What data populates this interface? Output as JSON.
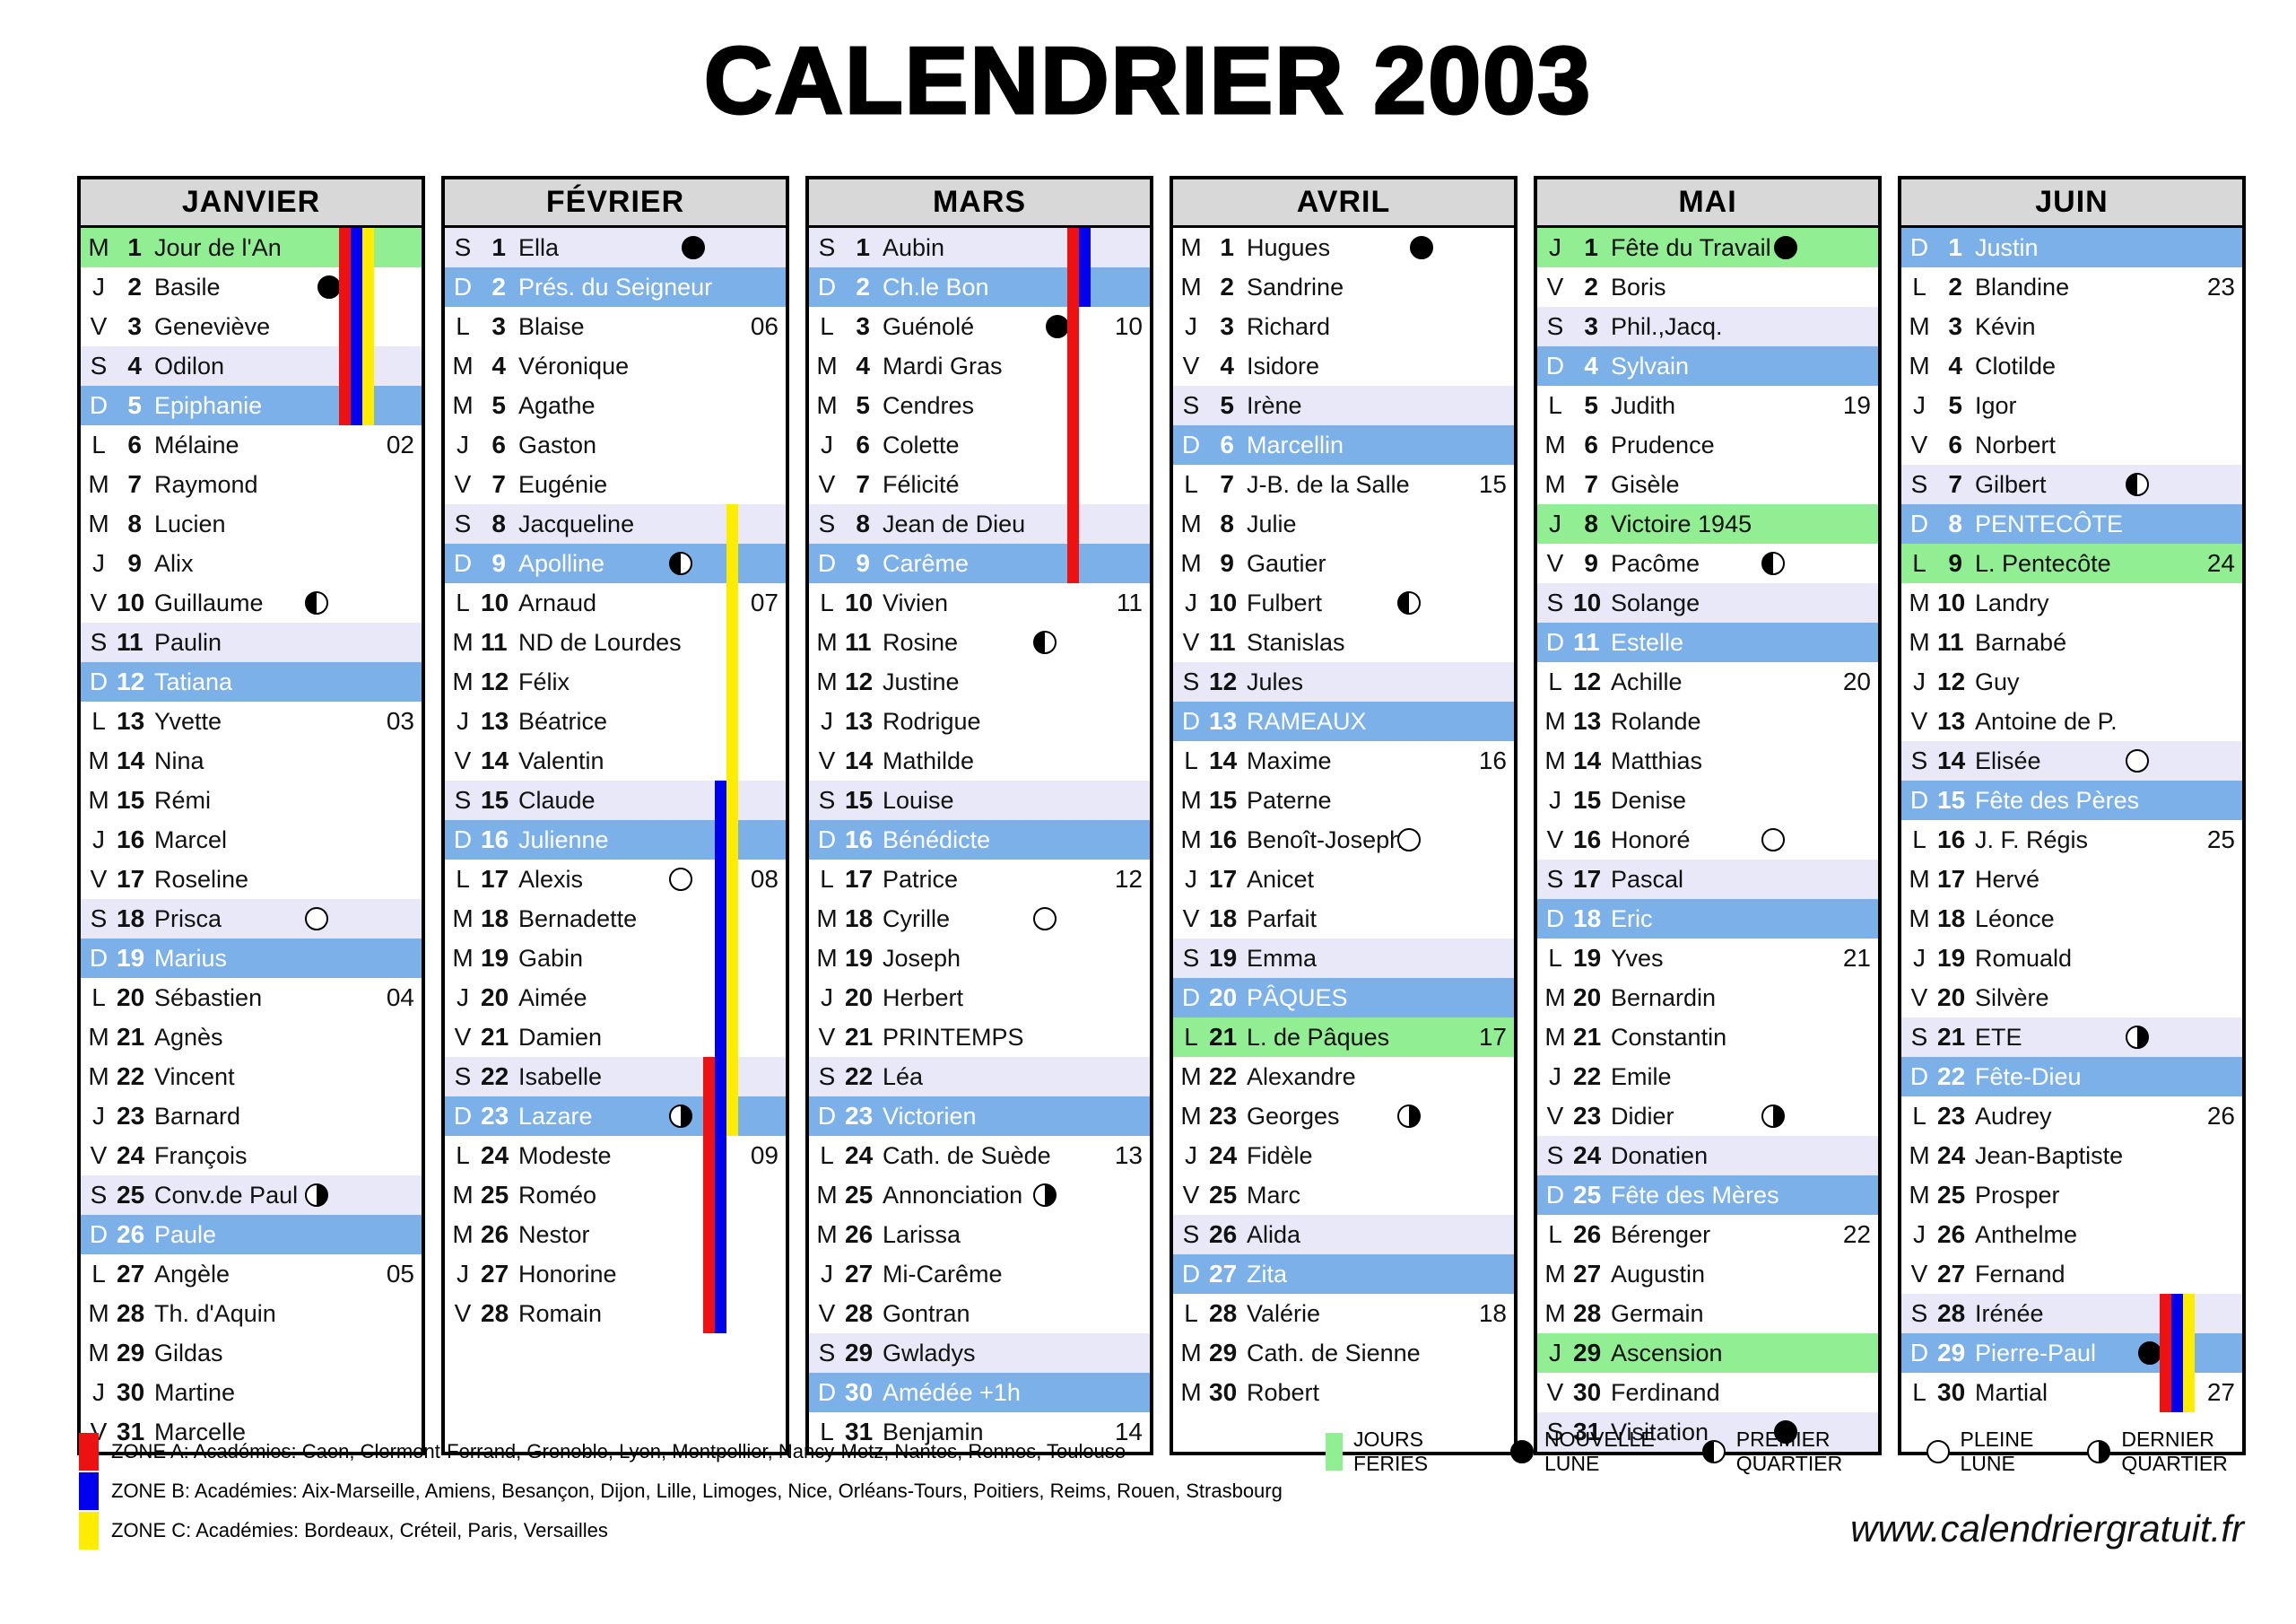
{
  "title": "CALENDRIER 2003",
  "website": "www.calendriergratuit.fr",
  "colors": {
    "sunday_row": "#7cb0e8",
    "saturday_row": "#e8e8f8",
    "holiday_row": "#92ee92",
    "header_bg": "#d8d8d8",
    "zone_a": "#ee1111",
    "zone_b": "#0000ee",
    "zone_c": "#ffed00"
  },
  "legend": {
    "zones": [
      {
        "zone": "A",
        "label": "ZONE A: Académies: Caen, Clermont-Ferrand, Grenoble, Lyon, Montpellier, Nancy-Metz, Nantes, Rennes, Toulouse"
      },
      {
        "zone": "B",
        "label": "ZONE B: Académies: Aix-Marseille, Amiens, Besançon, Dijon, Lille, Limoges, Nice, Orléans-Tours, Poitiers, Reims, Rouen, Strasbourg"
      },
      {
        "zone": "C",
        "label": "ZONE C: Académies: Bordeaux, Créteil, Paris, Versailles"
      }
    ],
    "markers": {
      "holiday": "JOURS FERIES",
      "new_moon": "NOUVELLE LUNE",
      "first_quarter": "PREMIER QUARTIER",
      "full_moon": "PLEINE LUNE",
      "last_quarter": "DERNIER QUARTIER"
    }
  },
  "months": [
    {
      "name": "JANVIER",
      "days": [
        {
          "d": "M",
          "n": 1,
          "s": "Jour de l'An",
          "h": 1,
          "z": "ABC"
        },
        {
          "d": "J",
          "n": 2,
          "s": "Basile",
          "m": "nm",
          "z": "ABC"
        },
        {
          "d": "V",
          "n": 3,
          "s": "Geneviève",
          "z": "ABC"
        },
        {
          "d": "S",
          "n": 4,
          "s": "Odilon",
          "z": "ABC"
        },
        {
          "d": "D",
          "n": 5,
          "s": "Epiphanie",
          "z": "ABC"
        },
        {
          "d": "L",
          "n": 6,
          "s": "Mélaine",
          "w": "02"
        },
        {
          "d": "M",
          "n": 7,
          "s": "Raymond"
        },
        {
          "d": "M",
          "n": 8,
          "s": "Lucien"
        },
        {
          "d": "J",
          "n": 9,
          "s": "Alix"
        },
        {
          "d": "V",
          "n": 10,
          "s": "Guillaume",
          "m": "fq"
        },
        {
          "d": "S",
          "n": 11,
          "s": "Paulin"
        },
        {
          "d": "D",
          "n": 12,
          "s": "Tatiana"
        },
        {
          "d": "L",
          "n": 13,
          "s": "Yvette",
          "w": "03"
        },
        {
          "d": "M",
          "n": 14,
          "s": "Nina"
        },
        {
          "d": "M",
          "n": 15,
          "s": "Rémi"
        },
        {
          "d": "J",
          "n": 16,
          "s": "Marcel"
        },
        {
          "d": "V",
          "n": 17,
          "s": "Roseline"
        },
        {
          "d": "S",
          "n": 18,
          "s": "Prisca",
          "m": "fm"
        },
        {
          "d": "D",
          "n": 19,
          "s": "Marius"
        },
        {
          "d": "L",
          "n": 20,
          "s": "Sébastien",
          "w": "04"
        },
        {
          "d": "M",
          "n": 21,
          "s": "Agnès"
        },
        {
          "d": "M",
          "n": 22,
          "s": "Vincent"
        },
        {
          "d": "J",
          "n": 23,
          "s": "Barnard"
        },
        {
          "d": "V",
          "n": 24,
          "s": "François"
        },
        {
          "d": "S",
          "n": 25,
          "s": "Conv.de Paul",
          "m": "lq"
        },
        {
          "d": "D",
          "n": 26,
          "s": "Paule"
        },
        {
          "d": "L",
          "n": 27,
          "s": "Angèle",
          "w": "05"
        },
        {
          "d": "M",
          "n": 28,
          "s": "Th. d'Aquin"
        },
        {
          "d": "M",
          "n": 29,
          "s": "Gildas"
        },
        {
          "d": "J",
          "n": 30,
          "s": "Martine"
        },
        {
          "d": "V",
          "n": 31,
          "s": "Marcelle"
        }
      ]
    },
    {
      "name": "FÉVRIER",
      "days": [
        {
          "d": "S",
          "n": 1,
          "s": "Ella",
          "m": "nm"
        },
        {
          "d": "D",
          "n": 2,
          "s": "Prés. du Seigneur"
        },
        {
          "d": "L",
          "n": 3,
          "s": "Blaise",
          "w": "06"
        },
        {
          "d": "M",
          "n": 4,
          "s": "Véronique"
        },
        {
          "d": "M",
          "n": 5,
          "s": "Agathe"
        },
        {
          "d": "J",
          "n": 6,
          "s": "Gaston"
        },
        {
          "d": "V",
          "n": 7,
          "s": "Eugénie"
        },
        {
          "d": "S",
          "n": 8,
          "s": "Jacqueline",
          "z": "C"
        },
        {
          "d": "D",
          "n": 9,
          "s": "Apolline",
          "m": "fq",
          "z": "C"
        },
        {
          "d": "L",
          "n": 10,
          "s": "Arnaud",
          "w": "07",
          "z": "C"
        },
        {
          "d": "M",
          "n": 11,
          "s": "ND de Lourdes",
          "z": "C"
        },
        {
          "d": "M",
          "n": 12,
          "s": "Félix",
          "z": "C"
        },
        {
          "d": "J",
          "n": 13,
          "s": "Béatrice",
          "z": "C"
        },
        {
          "d": "V",
          "n": 14,
          "s": "Valentin",
          "z": "C"
        },
        {
          "d": "S",
          "n": 15,
          "s": "Claude",
          "z": "BC"
        },
        {
          "d": "D",
          "n": 16,
          "s": "Julienne",
          "z": "BC"
        },
        {
          "d": "L",
          "n": 17,
          "s": "Alexis",
          "m": "fm",
          "w": "08",
          "z": "BC"
        },
        {
          "d": "M",
          "n": 18,
          "s": "Bernadette",
          "z": "BC"
        },
        {
          "d": "M",
          "n": 19,
          "s": "Gabin",
          "z": "BC"
        },
        {
          "d": "J",
          "n": 20,
          "s": "Aimée",
          "z": "BC"
        },
        {
          "d": "V",
          "n": 21,
          "s": "Damien",
          "z": "BC"
        },
        {
          "d": "S",
          "n": 22,
          "s": "Isabelle",
          "z": "ABC"
        },
        {
          "d": "D",
          "n": 23,
          "s": "Lazare",
          "m": "lq",
          "z": "ABC"
        },
        {
          "d": "L",
          "n": 24,
          "s": "Modeste",
          "w": "09",
          "z": "AB"
        },
        {
          "d": "M",
          "n": 25,
          "s": "Roméo",
          "z": "AB"
        },
        {
          "d": "M",
          "n": 26,
          "s": "Nestor",
          "z": "AB"
        },
        {
          "d": "J",
          "n": 27,
          "s": "Honorine",
          "z": "AB"
        },
        {
          "d": "V",
          "n": 28,
          "s": "Romain",
          "z": "AB"
        }
      ]
    },
    {
      "name": "MARS",
      "days": [
        {
          "d": "S",
          "n": 1,
          "s": "Aubin",
          "z": "AB"
        },
        {
          "d": "D",
          "n": 2,
          "s": "Ch.le Bon",
          "z": "AB"
        },
        {
          "d": "L",
          "n": 3,
          "s": "Guénolé",
          "m": "nm",
          "w": "10",
          "z": "A"
        },
        {
          "d": "M",
          "n": 4,
          "s": "Mardi Gras",
          "z": "A"
        },
        {
          "d": "M",
          "n": 5,
          "s": "Cendres",
          "z": "A"
        },
        {
          "d": "J",
          "n": 6,
          "s": "Colette",
          "z": "A"
        },
        {
          "d": "V",
          "n": 7,
          "s": "Félicité",
          "z": "A"
        },
        {
          "d": "S",
          "n": 8,
          "s": "Jean de Dieu",
          "z": "A"
        },
        {
          "d": "D",
          "n": 9,
          "s": "Carême",
          "z": "A"
        },
        {
          "d": "L",
          "n": 10,
          "s": "Vivien",
          "w": "11"
        },
        {
          "d": "M",
          "n": 11,
          "s": "Rosine",
          "m": "fq"
        },
        {
          "d": "M",
          "n": 12,
          "s": "Justine"
        },
        {
          "d": "J",
          "n": 13,
          "s": "Rodrigue"
        },
        {
          "d": "V",
          "n": 14,
          "s": "Mathilde"
        },
        {
          "d": "S",
          "n": 15,
          "s": "Louise"
        },
        {
          "d": "D",
          "n": 16,
          "s": "Bénédicte"
        },
        {
          "d": "L",
          "n": 17,
          "s": "Patrice",
          "w": "12"
        },
        {
          "d": "M",
          "n": 18,
          "s": "Cyrille",
          "m": "fm"
        },
        {
          "d": "M",
          "n": 19,
          "s": "Joseph"
        },
        {
          "d": "J",
          "n": 20,
          "s": "Herbert"
        },
        {
          "d": "V",
          "n": 21,
          "s": "PRINTEMPS"
        },
        {
          "d": "S",
          "n": 22,
          "s": "Léa"
        },
        {
          "d": "D",
          "n": 23,
          "s": "Victorien"
        },
        {
          "d": "L",
          "n": 24,
          "s": "Cath. de Suède",
          "w": "13"
        },
        {
          "d": "M",
          "n": 25,
          "s": "Annonciation",
          "m": "lq"
        },
        {
          "d": "M",
          "n": 26,
          "s": "Larissa"
        },
        {
          "d": "J",
          "n": 27,
          "s": "Mi-Carême"
        },
        {
          "d": "V",
          "n": 28,
          "s": "Gontran"
        },
        {
          "d": "S",
          "n": 29,
          "s": "Gwladys"
        },
        {
          "d": "D",
          "n": 30,
          "s": "Amédée +1h"
        },
        {
          "d": "L",
          "n": 31,
          "s": "Benjamin",
          "w": "14"
        }
      ]
    },
    {
      "name": "AVRIL",
      "days": [
        {
          "d": "M",
          "n": 1,
          "s": "Hugues",
          "m": "nm"
        },
        {
          "d": "M",
          "n": 2,
          "s": "Sandrine"
        },
        {
          "d": "J",
          "n": 3,
          "s": "Richard"
        },
        {
          "d": "V",
          "n": 4,
          "s": "Isidore"
        },
        {
          "d": "S",
          "n": 5,
          "s": "Irène"
        },
        {
          "d": "D",
          "n": 6,
          "s": "Marcellin"
        },
        {
          "d": "L",
          "n": 7,
          "s": "J-B. de la Salle",
          "w": "15"
        },
        {
          "d": "M",
          "n": 8,
          "s": "Julie"
        },
        {
          "d": "M",
          "n": 9,
          "s": "Gautier"
        },
        {
          "d": "J",
          "n": 10,
          "s": "Fulbert",
          "m": "fq"
        },
        {
          "d": "V",
          "n": 11,
          "s": "Stanislas"
        },
        {
          "d": "S",
          "n": 12,
          "s": "Jules"
        },
        {
          "d": "D",
          "n": 13,
          "s": "RAMEAUX"
        },
        {
          "d": "L",
          "n": 14,
          "s": "Maxime",
          "w": "16"
        },
        {
          "d": "M",
          "n": 15,
          "s": "Paterne"
        },
        {
          "d": "M",
          "n": 16,
          "s": "Benoît-Joseph",
          "m": "fm"
        },
        {
          "d": "J",
          "n": 17,
          "s": "Anicet"
        },
        {
          "d": "V",
          "n": 18,
          "s": "Parfait"
        },
        {
          "d": "S",
          "n": 19,
          "s": "Emma"
        },
        {
          "d": "D",
          "n": 20,
          "s": "PÂQUES"
        },
        {
          "d": "L",
          "n": 21,
          "s": "L. de Pâques",
          "h": 1,
          "w": "17"
        },
        {
          "d": "M",
          "n": 22,
          "s": "Alexandre"
        },
        {
          "d": "M",
          "n": 23,
          "s": "Georges",
          "m": "lq"
        },
        {
          "d": "J",
          "n": 24,
          "s": "Fidèle"
        },
        {
          "d": "V",
          "n": 25,
          "s": "Marc"
        },
        {
          "d": "S",
          "n": 26,
          "s": "Alida"
        },
        {
          "d": "D",
          "n": 27,
          "s": "Zita"
        },
        {
          "d": "L",
          "n": 28,
          "s": "Valérie",
          "w": "18"
        },
        {
          "d": "M",
          "n": 29,
          "s": "Cath. de Sienne"
        },
        {
          "d": "M",
          "n": 30,
          "s": "Robert"
        }
      ]
    },
    {
      "name": "MAI",
      "days": [
        {
          "d": "J",
          "n": 1,
          "s": "Fête du Travail",
          "h": 1,
          "m": "nm"
        },
        {
          "d": "V",
          "n": 2,
          "s": "Boris"
        },
        {
          "d": "S",
          "n": 3,
          "s": "Phil.,Jacq."
        },
        {
          "d": "D",
          "n": 4,
          "s": "Sylvain"
        },
        {
          "d": "L",
          "n": 5,
          "s": "Judith",
          "w": "19"
        },
        {
          "d": "M",
          "n": 6,
          "s": "Prudence"
        },
        {
          "d": "M",
          "n": 7,
          "s": "Gisèle"
        },
        {
          "d": "J",
          "n": 8,
          "s": "Victoire 1945",
          "h": 1
        },
        {
          "d": "V",
          "n": 9,
          "s": "Pacôme",
          "m": "fq"
        },
        {
          "d": "S",
          "n": 10,
          "s": "Solange"
        },
        {
          "d": "D",
          "n": 11,
          "s": "Estelle"
        },
        {
          "d": "L",
          "n": 12,
          "s": "Achille",
          "w": "20"
        },
        {
          "d": "M",
          "n": 13,
          "s": "Rolande"
        },
        {
          "d": "M",
          "n": 14,
          "s": "Matthias"
        },
        {
          "d": "J",
          "n": 15,
          "s": "Denise"
        },
        {
          "d": "V",
          "n": 16,
          "s": "Honoré",
          "m": "fm"
        },
        {
          "d": "S",
          "n": 17,
          "s": "Pascal"
        },
        {
          "d": "D",
          "n": 18,
          "s": "Eric"
        },
        {
          "d": "L",
          "n": 19,
          "s": "Yves",
          "w": "21"
        },
        {
          "d": "M",
          "n": 20,
          "s": "Bernardin"
        },
        {
          "d": "M",
          "n": 21,
          "s": "Constantin"
        },
        {
          "d": "J",
          "n": 22,
          "s": "Emile"
        },
        {
          "d": "V",
          "n": 23,
          "s": "Didier",
          "m": "lq"
        },
        {
          "d": "S",
          "n": 24,
          "s": "Donatien"
        },
        {
          "d": "D",
          "n": 25,
          "s": "Fête des Mères"
        },
        {
          "d": "L",
          "n": 26,
          "s": "Bérenger",
          "w": "22"
        },
        {
          "d": "M",
          "n": 27,
          "s": "Augustin"
        },
        {
          "d": "M",
          "n": 28,
          "s": "Germain"
        },
        {
          "d": "J",
          "n": 29,
          "s": "Ascension",
          "h": 1
        },
        {
          "d": "V",
          "n": 30,
          "s": "Ferdinand"
        },
        {
          "d": "S",
          "n": 31,
          "s": "Visitation",
          "m": "nm"
        }
      ]
    },
    {
      "name": "JUIN",
      "days": [
        {
          "d": "D",
          "n": 1,
          "s": "Justin"
        },
        {
          "d": "L",
          "n": 2,
          "s": "Blandine",
          "w": "23"
        },
        {
          "d": "M",
          "n": 3,
          "s": "Kévin"
        },
        {
          "d": "M",
          "n": 4,
          "s": "Clotilde"
        },
        {
          "d": "J",
          "n": 5,
          "s": "Igor"
        },
        {
          "d": "V",
          "n": 6,
          "s": "Norbert"
        },
        {
          "d": "S",
          "n": 7,
          "s": "Gilbert",
          "m": "fq"
        },
        {
          "d": "D",
          "n": 8,
          "s": "PENTECÔTE"
        },
        {
          "d": "L",
          "n": 9,
          "s": "L. Pentecôte",
          "h": 1,
          "w": "24"
        },
        {
          "d": "M",
          "n": 10,
          "s": "Landry"
        },
        {
          "d": "M",
          "n": 11,
          "s": "Barnabé"
        },
        {
          "d": "J",
          "n": 12,
          "s": "Guy"
        },
        {
          "d": "V",
          "n": 13,
          "s": "Antoine de P."
        },
        {
          "d": "S",
          "n": 14,
          "s": "Elisée",
          "m": "fm"
        },
        {
          "d": "D",
          "n": 15,
          "s": "Fête des Pères"
        },
        {
          "d": "L",
          "n": 16,
          "s": "J. F. Régis",
          "w": "25"
        },
        {
          "d": "M",
          "n": 17,
          "s": "Hervé"
        },
        {
          "d": "M",
          "n": 18,
          "s": "Léonce"
        },
        {
          "d": "J",
          "n": 19,
          "s": "Romuald"
        },
        {
          "d": "V",
          "n": 20,
          "s": "Silvère"
        },
        {
          "d": "S",
          "n": 21,
          "s": "ETE",
          "m": "lq"
        },
        {
          "d": "D",
          "n": 22,
          "s": "Fête-Dieu"
        },
        {
          "d": "L",
          "n": 23,
          "s": "Audrey",
          "w": "26"
        },
        {
          "d": "M",
          "n": 24,
          "s": "Jean-Baptiste"
        },
        {
          "d": "M",
          "n": 25,
          "s": "Prosper"
        },
        {
          "d": "J",
          "n": 26,
          "s": "Anthelme"
        },
        {
          "d": "V",
          "n": 27,
          "s": "Fernand"
        },
        {
          "d": "S",
          "n": 28,
          "s": "Irénée",
          "z": "ABC"
        },
        {
          "d": "D",
          "n": 29,
          "s": "Pierre-Paul",
          "m": "nm",
          "z": "ABC"
        },
        {
          "d": "L",
          "n": 30,
          "s": "Martial",
          "w": "27",
          "z": "ABC"
        }
      ]
    }
  ]
}
